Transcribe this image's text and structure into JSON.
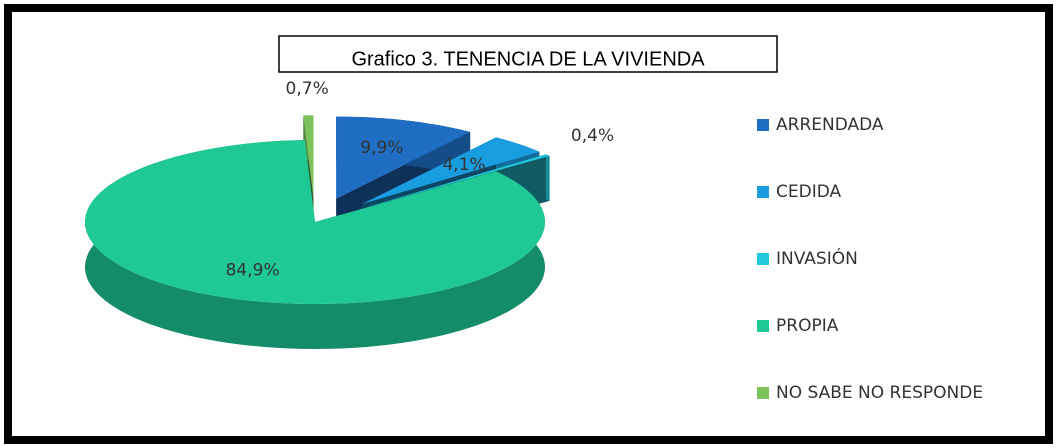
{
  "chart_data": {
    "type": "pie3d",
    "title": "Grafico 3. TENENCIA DE LA VIVIENDA",
    "categories": [
      "ARRENDADA",
      "CEDIDA",
      "INVASIÓN",
      "PROPIA",
      "NO SABE NO RESPONDE"
    ],
    "values": [
      9.9,
      4.1,
      0.4,
      84.9,
      0.7
    ],
    "value_labels": [
      "9,9%",
      "4,1%",
      "0,4%",
      "84,9%",
      "0,7%"
    ],
    "colors": [
      "#1f6ec4",
      "#1a9de0",
      "#22c8dc",
      "#1ec996",
      "#7cc35b"
    ],
    "legend": "right"
  }
}
